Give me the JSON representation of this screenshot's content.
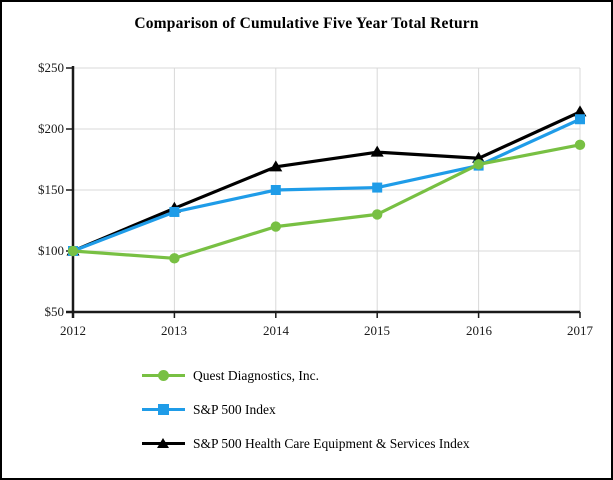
{
  "chart_data": {
    "type": "line",
    "title": "Comparison of Cumulative Five Year Total Return",
    "x": [
      "2012",
      "2013",
      "2014",
      "2015",
      "2016",
      "2017"
    ],
    "y_ticks": [
      250,
      200,
      150,
      100,
      50
    ],
    "y_tick_labels": [
      "$250",
      "$200",
      "$150",
      "$100",
      "$50"
    ],
    "ylim": [
      50,
      250
    ],
    "grid": true,
    "grid_color": "#d8d8d8",
    "axis_color": "#1a1a1a",
    "legend_position": "bottom-left",
    "series": [
      {
        "name": "Quest Diagnostics, Inc.",
        "color": "#78c043",
        "marker": "circle",
        "values": [
          100,
          94,
          120,
          130,
          171,
          187
        ]
      },
      {
        "name": "S&P 500 Index",
        "color": "#1f9ce8",
        "marker": "square",
        "values": [
          100,
          132,
          150,
          152,
          170,
          208
        ]
      },
      {
        "name": "S&P 500 Health Care Equipment & Services Index",
        "color": "#000000",
        "marker": "triangle",
        "values": [
          100,
          135,
          169,
          181,
          176,
          214
        ]
      }
    ]
  }
}
